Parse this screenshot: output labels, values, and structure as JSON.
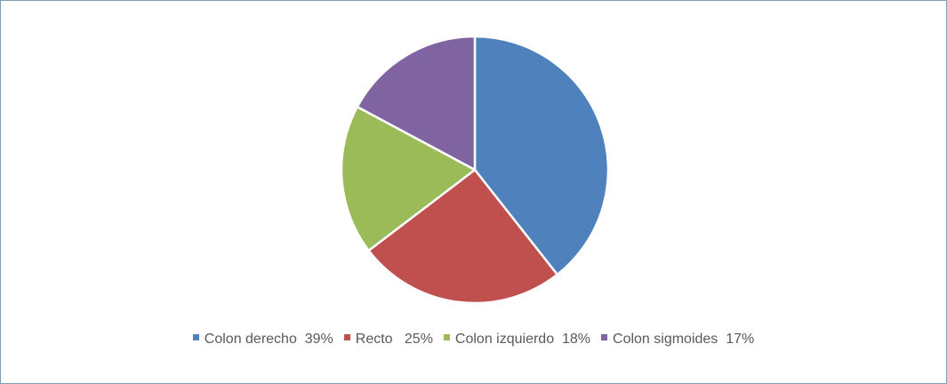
{
  "chart_data": {
    "type": "pie",
    "title": "",
    "start_angle": "top",
    "direction": "clockwise",
    "legend_position": "bottom",
    "slices": [
      {
        "label": "Colon derecho  39%",
        "value": 39,
        "color": "#4f81bd"
      },
      {
        "label": "Recto   25%",
        "value": 25,
        "color": "#c0504d"
      },
      {
        "label": "Colon izquierdo  18%",
        "value": 18,
        "color": "#9bbb59"
      },
      {
        "label": "Colon sigmoides  17%",
        "value": 17,
        "color": "#8064a2"
      }
    ]
  }
}
